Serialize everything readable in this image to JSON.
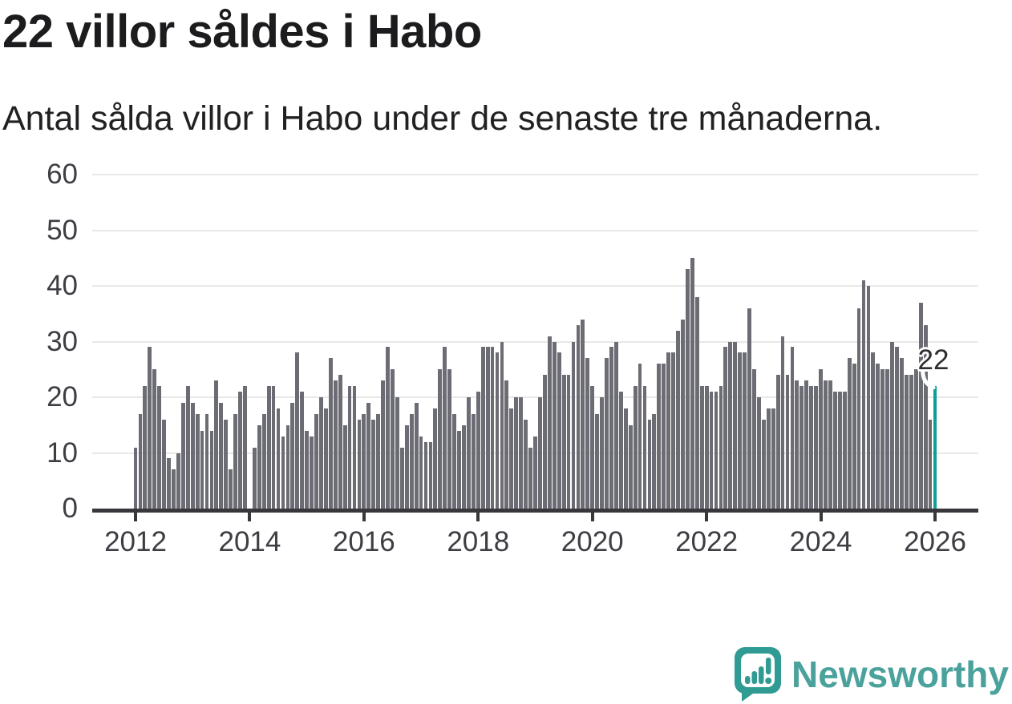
{
  "header": {
    "title": "22 villor såldes i Habo",
    "subtitle": "Antal sålda villor i Habo under de senaste tre månaderna."
  },
  "chart_data": {
    "type": "bar",
    "title": "22 villor såldes i Habo",
    "subtitle": "Antal sålda villor i Habo under de senaste tre månaderna.",
    "x_start": "2012-01",
    "x_end": "2026-01",
    "frequency": "monthly",
    "x_tick_labels": [
      "2012",
      "2014",
      "2016",
      "2018",
      "2020",
      "2022",
      "2024",
      "2026"
    ],
    "y_ticks": [
      0,
      10,
      20,
      30,
      40,
      50,
      60
    ],
    "ylim": [
      0,
      62
    ],
    "grid": "horizontal",
    "legend": "none",
    "bar_color": "#6c6c74",
    "values": [
      11,
      17,
      22,
      29,
      25,
      22,
      16,
      9,
      7,
      10,
      19,
      22,
      19,
      17,
      14,
      17,
      14,
      23,
      19,
      16,
      7,
      17,
      21,
      22,
      0,
      11,
      15,
      17,
      22,
      22,
      18,
      13,
      15,
      19,
      28,
      21,
      14,
      13,
      17,
      20,
      18,
      27,
      23,
      24,
      15,
      22,
      22,
      16,
      17,
      19,
      16,
      17,
      23,
      29,
      25,
      20,
      11,
      15,
      17,
      19,
      13,
      12,
      12,
      18,
      25,
      29,
      25,
      17,
      14,
      15,
      20,
      17,
      21,
      29,
      29,
      29,
      28,
      30,
      23,
      18,
      20,
      20,
      16,
      11,
      13,
      20,
      24,
      31,
      30,
      28,
      24,
      24,
      30,
      33,
      34,
      27,
      22,
      17,
      20,
      27,
      29,
      30,
      21,
      18,
      15,
      22,
      26,
      22,
      16,
      17,
      26,
      26,
      28,
      28,
      32,
      34,
      43,
      45,
      38,
      22,
      22,
      21,
      21,
      22,
      29,
      30,
      30,
      28,
      28,
      36,
      25,
      20,
      16,
      18,
      18,
      24,
      31,
      24,
      29,
      23,
      22,
      23,
      22,
      22,
      25,
      23,
      23,
      21,
      21,
      21,
      27,
      26,
      36,
      41,
      40,
      28,
      26,
      25,
      25,
      30,
      29,
      27,
      24,
      24,
      25,
      37,
      33,
      16,
      22
    ],
    "highlight": {
      "index": 168,
      "value": 22,
      "label": "22",
      "color": "#0d9e98"
    }
  },
  "footer": {
    "logo_text": "Newsworthy",
    "logo_text_color": "#4ba29c",
    "logo_mark_color": "#2f9b93"
  }
}
